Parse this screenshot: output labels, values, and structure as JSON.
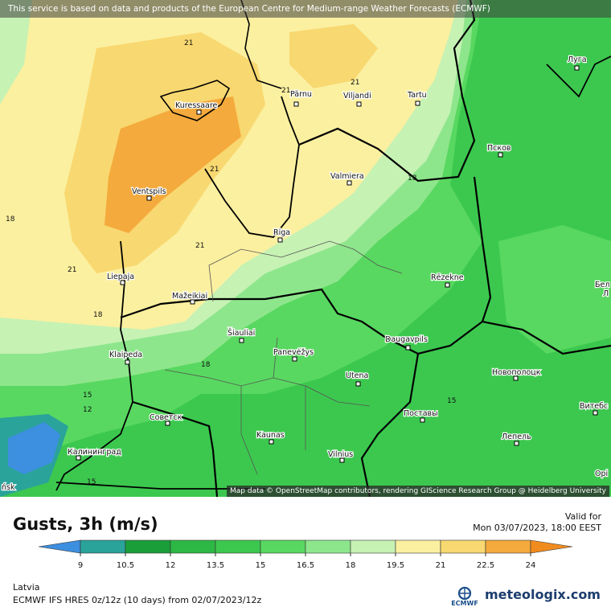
{
  "notice": "This service is based on data and products of the European Centre for Medium-range Weather Forecasts (ECMWF)",
  "credit": "Map data © OpenStreetMap contributors, rendering GIScience Research Group @ Heidelberg University",
  "title": "Gusts, 3h (m/s)",
  "valid_label": "Valid for",
  "valid_time": "Mon 03/07/2023, 18:00 EEST",
  "region": "Latvia",
  "model": "ECMWF IFS HRES 0z/12z (10 days) from 02/07/2023/12z",
  "ecmwf_logo_text": "ECMWF",
  "brand": "meteologix.com",
  "scale": {
    "ticks": [
      "9",
      "10.5",
      "12",
      "13.5",
      "15",
      "16.5",
      "18",
      "19.5",
      "21",
      "22.5",
      "24"
    ],
    "colors": [
      "#3d8fe0",
      "#2aa39a",
      "#1a9e3a",
      "#2db845",
      "#3cc84f",
      "#58d860",
      "#8ee68c",
      "#c6f2b4",
      "#fbf0a0",
      "#f8d870",
      "#f4aa3c",
      "#f08c1e"
    ]
  },
  "cities": [
    {
      "name": "Kuressaare"
    },
    {
      "name": "Pärnu"
    },
    {
      "name": "Viljandi"
    },
    {
      "name": "Tartu"
    },
    {
      "name": "Луга"
    },
    {
      "name": "Псков"
    },
    {
      "name": "Valmiera"
    },
    {
      "name": "Ventspils"
    },
    {
      "name": "Riga"
    },
    {
      "name": "Liepaja"
    },
    {
      "name": "Rēzekne"
    },
    {
      "name": "Mažeikiai"
    },
    {
      "name": "Šiauliai"
    },
    {
      "name": "Daugavpils"
    },
    {
      "name": "Klaipeda"
    },
    {
      "name": "Panevėžys"
    },
    {
      "name": "Utena"
    },
    {
      "name": "Новополоцк"
    },
    {
      "name": "Витебс"
    },
    {
      "name": "Советск"
    },
    {
      "name": "Поставы"
    },
    {
      "name": "Kaunas"
    },
    {
      "name": "Лепель"
    },
    {
      "name": "Калининград"
    },
    {
      "name": "Vilnius"
    },
    {
      "name": "Бел"
    },
    {
      "name": "Л"
    },
    {
      "name": "Орі"
    },
    {
      "name": "ńsk"
    }
  ],
  "isolines": [
    "21",
    "21",
    "21",
    "21",
    "18",
    "21",
    "21",
    "18",
    "18",
    "18",
    "15",
    "12",
    "15",
    "15"
  ]
}
